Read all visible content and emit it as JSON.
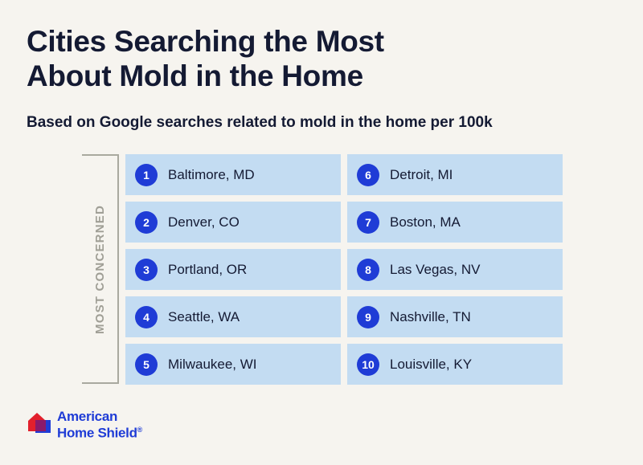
{
  "title_line1": "Cities Searching the Most",
  "title_line2": "About Mold in the Home",
  "subtitle": "Based on Google searches related to mold in the home per 100k",
  "side_label": "MOST CONCERNED",
  "cities": [
    {
      "rank": "1",
      "name": "Baltimore, MD"
    },
    {
      "rank": "2",
      "name": "Denver, CO"
    },
    {
      "rank": "3",
      "name": "Portland, OR"
    },
    {
      "rank": "4",
      "name": "Seattle, WA"
    },
    {
      "rank": "5",
      "name": "Milwaukee, WI"
    },
    {
      "rank": "6",
      "name": "Detroit, MI"
    },
    {
      "rank": "7",
      "name": "Boston, MA"
    },
    {
      "rank": "8",
      "name": "Las Vegas, NV"
    },
    {
      "rank": "9",
      "name": "Nashville, TN"
    },
    {
      "rank": "10",
      "name": "Louisville, KY"
    }
  ],
  "logo": {
    "line1": "American",
    "line2": "Home Shield",
    "mark": "®",
    "icon": "house-logo-icon"
  },
  "colors": {
    "background": "#f6f4ef",
    "cell": "#c3dcf2",
    "badge": "#1f3cd6",
    "text": "#141a33",
    "logo_red": "#e2202c"
  }
}
